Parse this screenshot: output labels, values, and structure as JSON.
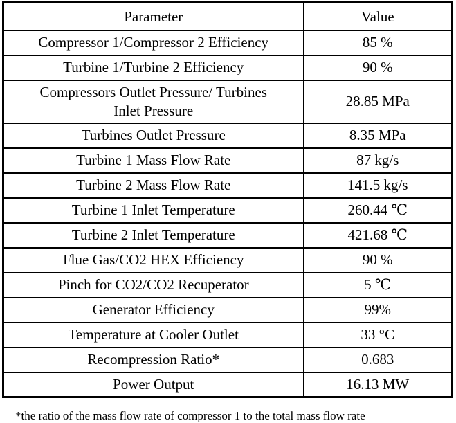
{
  "table": {
    "headers": [
      "Parameter",
      "Value"
    ],
    "rows": [
      {
        "parameter": "Compressor 1/Compressor 2 Efficiency",
        "value": "85 %"
      },
      {
        "parameter": "Turbine 1/Turbine 2 Efficiency",
        "value": "90 %"
      },
      {
        "parameter": "Compressors Outlet Pressure/ Turbines\nInlet Pressure",
        "value": "28.85 MPa",
        "tall": true
      },
      {
        "parameter": "Turbines Outlet Pressure",
        "value": "8.35 MPa"
      },
      {
        "parameter": "Turbine 1 Mass Flow Rate",
        "value": "87 kg/s"
      },
      {
        "parameter": "Turbine 2 Mass Flow Rate",
        "value": "141.5 kg/s"
      },
      {
        "parameter": "Turbine 1 Inlet Temperature",
        "value": "260.44 ℃"
      },
      {
        "parameter": "Turbine 2 Inlet Temperature",
        "value": "421.68 ℃"
      },
      {
        "parameter": "Flue Gas/CO2 HEX Efficiency",
        "value": "90 %"
      },
      {
        "parameter": "Pinch for CO2/CO2 Recuperator",
        "value": "5 ℃"
      },
      {
        "parameter": "Generator Efficiency",
        "value": "99%"
      },
      {
        "parameter": "Temperature at Cooler Outlet",
        "value": "33 °C"
      },
      {
        "parameter": "Recompression Ratio*",
        "value": "0.683"
      },
      {
        "parameter": "Power Output",
        "value": "16.13 MW"
      }
    ]
  },
  "footnote": {
    "text": "*the ratio of the mass flow rate of compressor 1 to the total mass flow rate"
  },
  "chart_data": {
    "type": "table",
    "title": "",
    "columns": [
      "Parameter",
      "Value"
    ],
    "rows": [
      [
        "Compressor 1/Compressor 2 Efficiency",
        "85 %"
      ],
      [
        "Turbine 1/Turbine 2 Efficiency",
        "90 %"
      ],
      [
        "Compressors Outlet Pressure/ Turbines Inlet Pressure",
        "28.85 MPa"
      ],
      [
        "Turbines Outlet Pressure",
        "8.35 MPa"
      ],
      [
        "Turbine 1 Mass Flow Rate",
        "87 kg/s"
      ],
      [
        "Turbine 2 Mass Flow Rate",
        "141.5 kg/s"
      ],
      [
        "Turbine 1 Inlet Temperature",
        "260.44 ℃"
      ],
      [
        "Turbine 2 Inlet Temperature",
        "421.68 ℃"
      ],
      [
        "Flue Gas/CO2 HEX Efficiency",
        "90 %"
      ],
      [
        "Pinch for CO2/CO2 Recuperator",
        "5 ℃"
      ],
      [
        "Generator Efficiency",
        "99%"
      ],
      [
        "Temperature at Cooler Outlet",
        "33 °C"
      ],
      [
        "Recompression Ratio*",
        "0.683"
      ],
      [
        "Power Output",
        "16.13 MW"
      ]
    ]
  },
  "colors": {
    "text": "#000000",
    "border": "#000000",
    "background": "#ffffff"
  }
}
